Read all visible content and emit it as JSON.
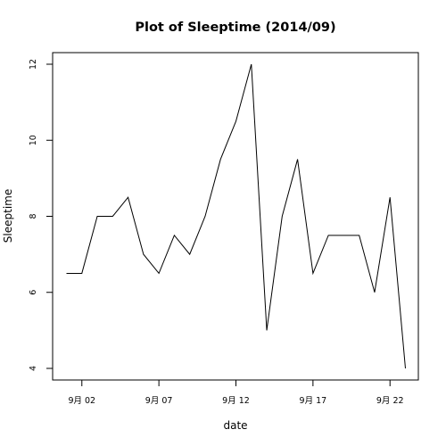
{
  "chart_data": {
    "type": "line",
    "title": "Plot of Sleeptime (2014/09)",
    "xlabel": "date",
    "ylabel": "Sleeptime",
    "x": [
      "2014-09-01",
      "2014-09-02",
      "2014-09-03",
      "2014-09-04",
      "2014-09-05",
      "2014-09-06",
      "2014-09-07",
      "2014-09-08",
      "2014-09-09",
      "2014-09-10",
      "2014-09-11",
      "2014-09-12",
      "2014-09-13",
      "2014-09-14",
      "2014-09-15",
      "2014-09-16",
      "2014-09-17",
      "2014-09-18",
      "2014-09-19",
      "2014-09-20",
      "2014-09-21",
      "2014-09-22",
      "2014-09-23"
    ],
    "series": [
      {
        "values": [
          6.5,
          6.5,
          8,
          8,
          8.5,
          7,
          6.5,
          7.5,
          7,
          8,
          9.5,
          10.5,
          12,
          5,
          8,
          9.5,
          6.5,
          7.5,
          7.5,
          7.5,
          6,
          8.5,
          4
        ],
        "color": "#000000"
      }
    ],
    "x_ticks": [
      {
        "date": "2014-09-02",
        "label": "9月 02"
      },
      {
        "date": "2014-09-07",
        "label": "9月 07"
      },
      {
        "date": "2014-09-12",
        "label": "9月 12"
      },
      {
        "date": "2014-09-17",
        "label": "9月 17"
      },
      {
        "date": "2014-09-22",
        "label": "9月 22"
      }
    ],
    "y_ticks": [
      4,
      6,
      8,
      10,
      12
    ],
    "xlim": [
      "2014-09-01",
      "2014-09-23"
    ],
    "ylim": [
      4,
      12
    ],
    "grid": false,
    "legend": "none"
  }
}
